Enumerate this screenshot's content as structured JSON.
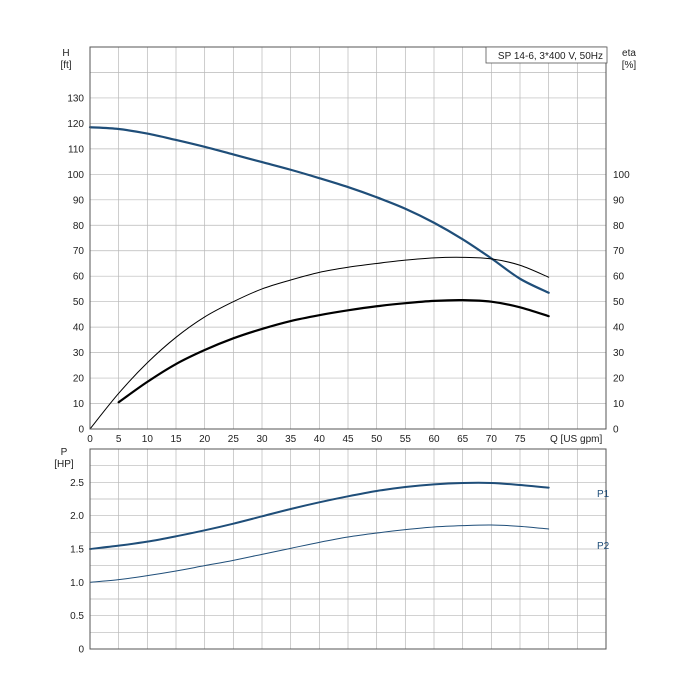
{
  "colors": {
    "grid": "#b8b8b8",
    "frame": "#555555",
    "head_curve": "#1f4e79",
    "power_curve": "#1f4e79",
    "eta_curve": "#000000"
  },
  "chart_data": [
    {
      "type": "line",
      "name": "head-efficiency",
      "title": "SP 14-6, 3*400 V, 50Hz",
      "ylabel": "H",
      "yunit": "[ft]",
      "y2label": "eta",
      "y2unit": "[%]",
      "xlabel": "Q [US gpm]",
      "xlim": [
        0,
        90
      ],
      "ylim": [
        0,
        150
      ],
      "y2lim": [
        0,
        150
      ],
      "x_ticks": [
        0,
        5,
        10,
        15,
        20,
        25,
        30,
        35,
        40,
        45,
        50,
        55,
        60,
        65,
        70,
        75
      ],
      "y_ticks": [
        0,
        10,
        20,
        30,
        40,
        50,
        60,
        70,
        80,
        90,
        100,
        110,
        120,
        130
      ],
      "y2_ticks": [
        0,
        10,
        20,
        30,
        40,
        50,
        60,
        70,
        80,
        90,
        100
      ],
      "grid": true,
      "series": [
        {
          "x": [
            0,
            5,
            10,
            15,
            20,
            25,
            30,
            35,
            40,
            45,
            50,
            55,
            60,
            65,
            70,
            75,
            80
          ],
          "y": [
            118.5,
            117.8,
            116,
            113.5,
            110.8,
            107.8,
            104.8,
            101.8,
            98.5,
            95,
            91,
            86.5,
            81,
            74.5,
            67,
            59,
            53.5
          ]
        },
        {
          "x": [
            0,
            5,
            10,
            15,
            20,
            25,
            30,
            35,
            40,
            45,
            50,
            55,
            60,
            65,
            70,
            75,
            80
          ],
          "y": [
            0,
            14,
            26,
            36,
            44,
            50,
            55,
            58.5,
            61.5,
            63.5,
            65,
            66.3,
            67.2,
            67.4,
            66.8,
            64.3,
            59.6
          ]
        },
        {
          "x": [
            5,
            10,
            15,
            20,
            25,
            30,
            35,
            40,
            45,
            50,
            55,
            60,
            65,
            70,
            75,
            80
          ],
          "y": [
            10.5,
            18.5,
            25.5,
            31,
            35.6,
            39.3,
            42.4,
            44.7,
            46.6,
            48.2,
            49.4,
            50.3,
            50.6,
            50,
            47.8,
            44.3
          ]
        }
      ]
    },
    {
      "type": "line",
      "name": "power",
      "ylabel": "P",
      "yunit": "[HP]",
      "xlim": [
        0,
        90
      ],
      "ylim": [
        0,
        3
      ],
      "y_ticks": [
        0,
        0.5,
        1.0,
        1.5,
        2.0,
        2.5
      ],
      "y_tick_labels": [
        "0",
        "0.5",
        "1.0",
        "1.5",
        "2.0",
        "2.5"
      ],
      "grid": true,
      "series": [
        {
          "name": "P1",
          "x": [
            0,
            5,
            10,
            15,
            20,
            25,
            30,
            35,
            40,
            45,
            50,
            55,
            60,
            65,
            70,
            75,
            80
          ],
          "y": [
            1.5,
            1.55,
            1.61,
            1.69,
            1.78,
            1.88,
            1.99,
            2.1,
            2.2,
            2.29,
            2.37,
            2.43,
            2.47,
            2.49,
            2.49,
            2.46,
            2.42
          ]
        },
        {
          "name": "P2",
          "x": [
            0,
            5,
            10,
            15,
            20,
            25,
            30,
            35,
            40,
            45,
            50,
            55,
            60,
            65,
            70,
            75,
            80
          ],
          "y": [
            1.0,
            1.04,
            1.1,
            1.17,
            1.25,
            1.33,
            1.42,
            1.51,
            1.6,
            1.68,
            1.74,
            1.79,
            1.83,
            1.85,
            1.86,
            1.84,
            1.8
          ]
        }
      ]
    }
  ]
}
